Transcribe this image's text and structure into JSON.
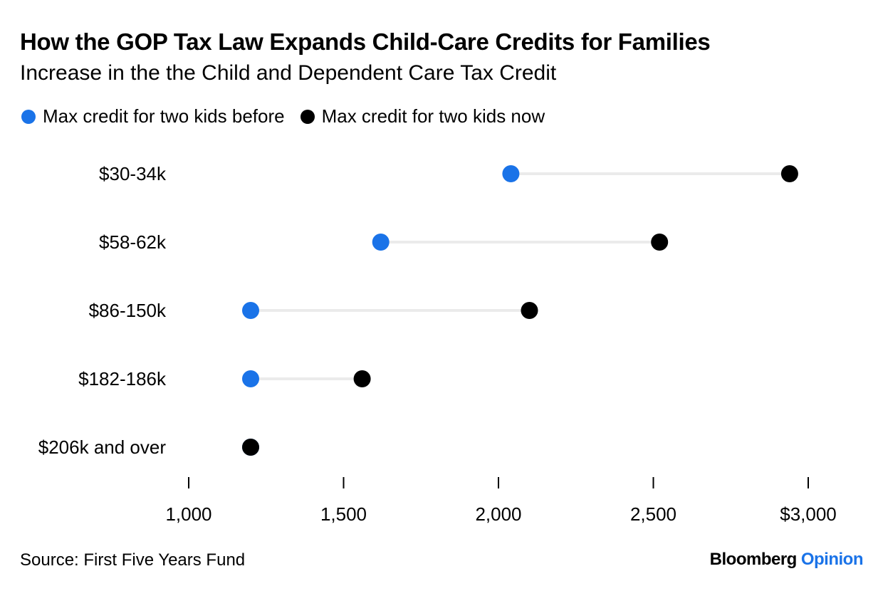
{
  "title": "How the GOP Tax Law Expands Child-Care Credits for Families",
  "subtitle": "Increase in the the Child and Dependent Care Tax Credit",
  "source": "Source: First Five Years Fund",
  "brand": {
    "name": "Bloomberg",
    "section": "Opinion",
    "name_color": "#000000",
    "section_color": "#1a73e8"
  },
  "colors": {
    "before": "#1a73e8",
    "now": "#000000",
    "connector": "#ebebeb",
    "axis": "#000000"
  },
  "chart_data": {
    "type": "dot-plot",
    "categories": [
      "$30-34k",
      "$58-62k",
      "$86-150k",
      "$182-186k",
      "$206k and over"
    ],
    "series": [
      {
        "name": "Max credit for two kids before",
        "values": [
          2040,
          1620,
          1200,
          1200,
          1200
        ]
      },
      {
        "name": "Max credit for two kids now",
        "values": [
          2940,
          2520,
          2100,
          1560,
          1200
        ]
      }
    ],
    "xlim": [
      1000,
      3000
    ],
    "xticks": [
      1000,
      1500,
      2000,
      2500,
      3000
    ],
    "xtick_labels": [
      "1,000",
      "1,500",
      "2,000",
      "2,500",
      "$3,000"
    ],
    "grid": false,
    "legend_position": "top-left"
  }
}
